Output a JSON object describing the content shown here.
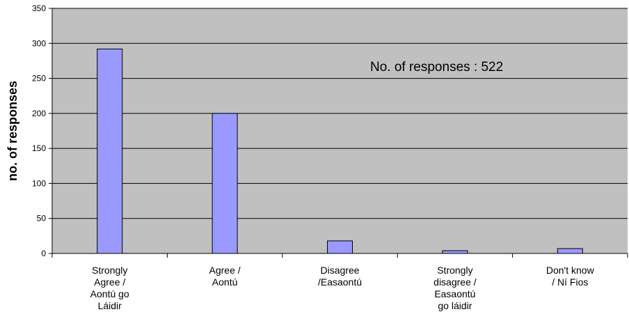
{
  "chart_data": {
    "type": "bar",
    "categories": [
      [
        "Strongly",
        "Agree /",
        "Aontú go",
        "Láidir"
      ],
      [
        "Agree /",
        "Aontú"
      ],
      [
        "Disagree",
        "/Easaontú"
      ],
      [
        "Strongly",
        "disagree /",
        "Easaontú",
        "go láidir"
      ],
      [
        "Don't know",
        "/ Ní Fios"
      ]
    ],
    "values": [
      292,
      200,
      18,
      4,
      7
    ],
    "xlabel": "",
    "ylabel": "no. of responses",
    "ylim": [
      0,
      350
    ],
    "yticks": [
      0,
      50,
      100,
      150,
      200,
      250,
      300,
      350
    ],
    "annotation": "No. of responses : 522",
    "grid": true,
    "colors": {
      "plot_background": "#c0c0c0",
      "bar_fill": "#9999ff",
      "bar_stroke": "#000000",
      "gridline": "#000000"
    }
  }
}
